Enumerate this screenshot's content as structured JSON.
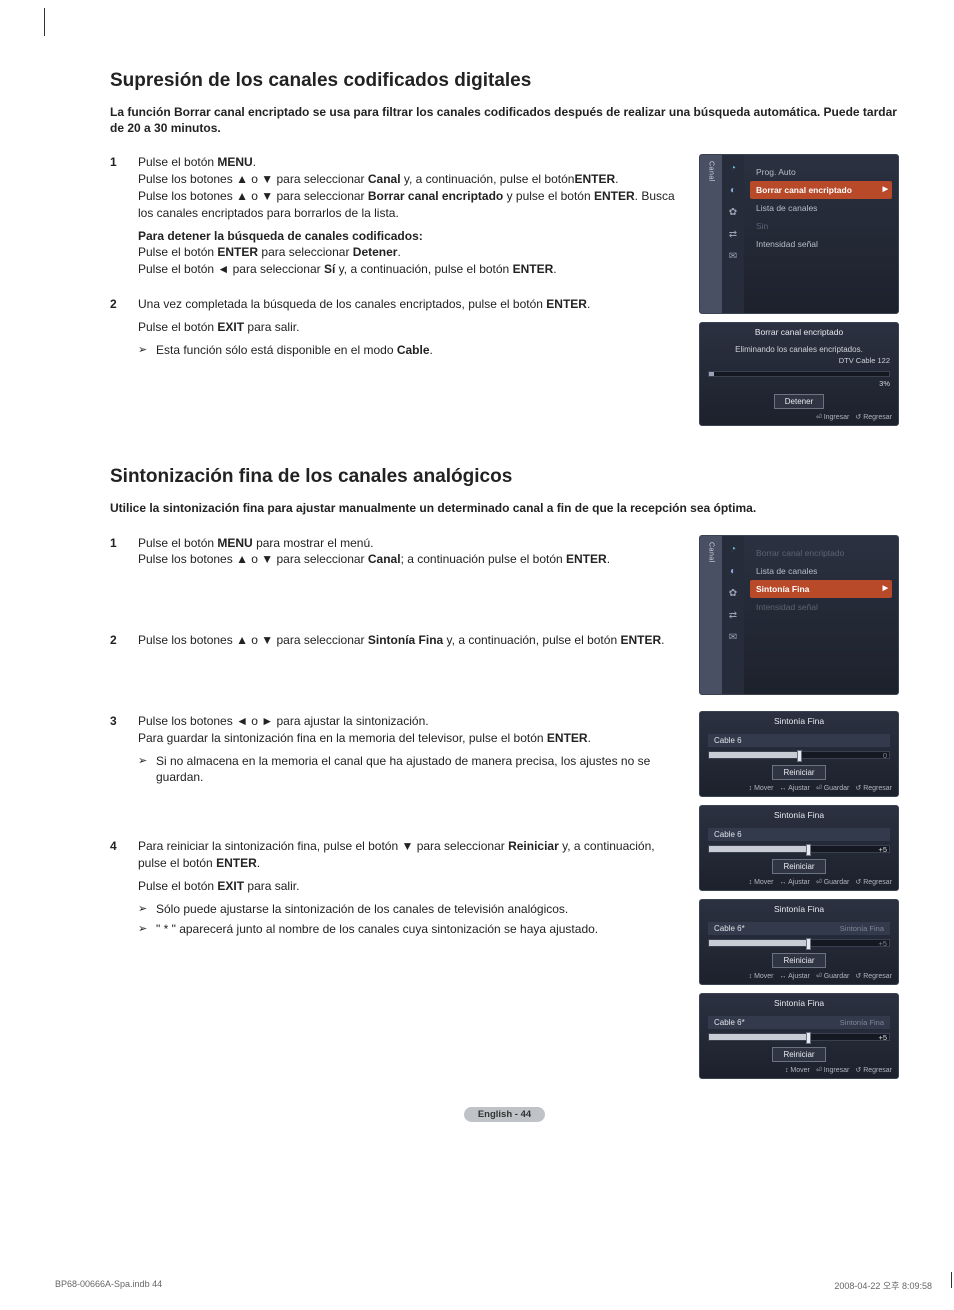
{
  "page": {
    "lang_footer": "English - 44",
    "print_left": "BP68-00666A-Spa.indb   44",
    "print_right": "2008-04-22   오후 8:09:58"
  },
  "section1": {
    "title": "Supresión de los canales codificados digitales",
    "intro": "La función Borrar canal encriptado se usa para filtrar los canales codificados después de realizar una búsqueda automática. Puede tardar de 20 a 30 minutos.",
    "step1_a": "Pulse el botón ",
    "step1_menu": "MENU",
    "step1_b": ".",
    "step1_c": "Pulse los botones ▲ o ▼ para seleccionar ",
    "step1_canal": "Canal",
    "step1_d": " y, a continuación, pulse el botón",
    "step1_enter1": "ENTER",
    "step1_e": ".",
    "step1_f": "Pulse los botones ▲ o ▼ para seleccionar ",
    "step1_bce": "Borrar canal encriptado",
    "step1_g": " y pulse el botón ",
    "step1_enter2": "ENTER",
    "step1_h": ". Busca los canales encriptados para borrarlos de la lista.",
    "step1_stop_title": "Para detener la búsqueda de canales codificados:",
    "step1_stop_a": "Pulse el botón ",
    "step1_stop_enter": "ENTER",
    "step1_stop_b": " para seleccionar ",
    "step1_stop_det": "Detener",
    "step1_stop_c": ".",
    "step1_stop_d": "Pulse el botón ◄ para seleccionar ",
    "step1_stop_si": "Sí",
    "step1_stop_e": " y, a continuación, pulse el botón ",
    "step1_stop_enter2": "ENTER",
    "step1_stop_f": ".",
    "step2_a": "Una vez completada la búsqueda de los canales encriptados, pulse el botón ",
    "step2_enter": "ENTER",
    "step2_b": ".",
    "step2_c": "Pulse el botón ",
    "step2_exit": "EXIT",
    "step2_d": " para salir.",
    "step2_note": "Esta función sólo está disponible en el modo ",
    "step2_cable": "Cable",
    "step2_note_end": ".",
    "menu": {
      "tab": "Canal",
      "items": [
        {
          "label": "Prog. Auto",
          "state": "normal"
        },
        {
          "label": "Borrar canal encriptado",
          "state": "sel"
        },
        {
          "label": "Lista de canales",
          "state": "normal"
        },
        {
          "label": "Sin",
          "state": "dim"
        },
        {
          "label": "Intensidad señal",
          "state": "normal"
        }
      ],
      "icon_glyphs": [
        "◔",
        "◐",
        "✿",
        "⇄",
        "✉"
      ],
      "icon_colors": [
        "#67c1d4",
        "#8aa7d8",
        "#9aa3b4",
        "#9aa3b4",
        "#9aa3b4"
      ]
    },
    "dialog": {
      "title": "Borrar canal encriptado",
      "body": "Eliminando los canales encriptados.",
      "info1": "DTV Cable 122",
      "info2": "3%",
      "progress_pct": 3,
      "btn": "Detener",
      "footer": [
        {
          "g": "⏎",
          "t": "Ingresar"
        },
        {
          "g": "↺",
          "t": "Regresar"
        }
      ]
    }
  },
  "section2": {
    "title": "Sintonización fina de los canales analógicos",
    "intro": "Utilice la sintonización fina para ajustar manualmente un determinado canal a fin de que la recepción sea óptima.",
    "step1_a": "Pulse el botón ",
    "step1_menu": "MENU",
    "step1_b": " para mostrar el menú.",
    "step1_c": "Pulse los botones ▲ o ▼ para seleccionar ",
    "step1_canal": "Canal",
    "step1_d": "; a continuación pulse el botón ",
    "step1_enter": "ENTER",
    "step1_e": ".",
    "step2_a": "Pulse los botones ▲ o ▼ para seleccionar ",
    "step2_sf": "Sintonía Fina",
    "step2_b": " y, a continuación, pulse el botón ",
    "step2_enter": "ENTER",
    "step2_c": ".",
    "step3_a": "Pulse los botones ◄ o ► para ajustar la sintonización.",
    "step3_b": "Para guardar la sintonización fina en la memoria del televisor, pulse el botón ",
    "step3_enter": "ENTER",
    "step3_c": ".",
    "step3_note": "Si no almacena en la memoria el canal que ha ajustado de manera precisa, los ajustes no se guardan.",
    "step4_a": "Para reiniciar la sintonización fina, pulse el botón ▼ para seleccionar ",
    "step4_rein": "Reiniciar",
    "step4_b": " y, a continuación, pulse el botón ",
    "step4_enter": "ENTER",
    "step4_c": ".",
    "step4_d": "Pulse el botón ",
    "step4_exit": "EXIT",
    "step4_e": " para salir.",
    "step4_note1": "Sólo puede ajustarse la sintonización de los canales de televisión analógicos.",
    "step4_note2": "\" * \" aparecerá junto al nombre de los canales cuya sintonización se haya ajustado.",
    "menu": {
      "tab": "Canal",
      "items": [
        {
          "label": "Borrar canal encriptado",
          "state": "dim"
        },
        {
          "label": "Lista de canales",
          "state": "normal"
        },
        {
          "label": "Sintonía Fina",
          "state": "sel"
        },
        {
          "label": "Intensidad señal",
          "state": "dim"
        }
      ],
      "icon_glyphs": [
        "◔",
        "◐",
        "✿",
        "⇄",
        "✉"
      ],
      "icon_colors": [
        "#67c1d4",
        "#8aa7d8",
        "#9aa3b4",
        "#9aa3b4",
        "#9aa3b4"
      ]
    },
    "ft_common": {
      "title": "Sintonía Fina",
      "reset": "Reiniciar",
      "footer_full": [
        {
          "g": "↕",
          "t": "Mover"
        },
        {
          "g": "↔",
          "t": "Ajustar"
        },
        {
          "g": "⏎",
          "t": "Guardar"
        },
        {
          "g": "↺",
          "t": "Regresar"
        }
      ],
      "footer_enter": [
        {
          "g": "↕",
          "t": "Mover"
        },
        {
          "g": "⏎",
          "t": "Ingresar"
        },
        {
          "g": "↺",
          "t": "Regresar"
        }
      ]
    },
    "ft_boxes": [
      {
        "channel": "Cable 6",
        "indicator": "",
        "value": "0",
        "fill_pct": 50,
        "thumb_pct": 50,
        "val_color": "#7f8694",
        "ind_color": "#8b93a5",
        "footer": "full"
      },
      {
        "channel": "Cable 6",
        "indicator": "",
        "value": "+5",
        "fill_pct": 55,
        "thumb_pct": 55,
        "val_color": "#d7dbe3",
        "ind_color": "#8b93a5",
        "footer": "full"
      },
      {
        "channel": "Cable 6*",
        "indicator": "Sintonía Fina",
        "value": "+5",
        "fill_pct": 55,
        "thumb_pct": 55,
        "val_color": "#7f8694",
        "ind_color": "#7f8694",
        "footer": "full"
      },
      {
        "channel": "Cable 6*",
        "indicator": "Sintonía Fina",
        "value": "+5",
        "fill_pct": 55,
        "thumb_pct": 55,
        "val_color": "#d7dbe3",
        "ind_color": "#7f8694",
        "footer": "enter"
      }
    ]
  },
  "colors": {
    "osd_bg_top": "#2b3140",
    "osd_bg_bottom": "#1c212c",
    "osd_sel": "#b84a2a",
    "page_badge_bg": "#bfc2c7"
  }
}
